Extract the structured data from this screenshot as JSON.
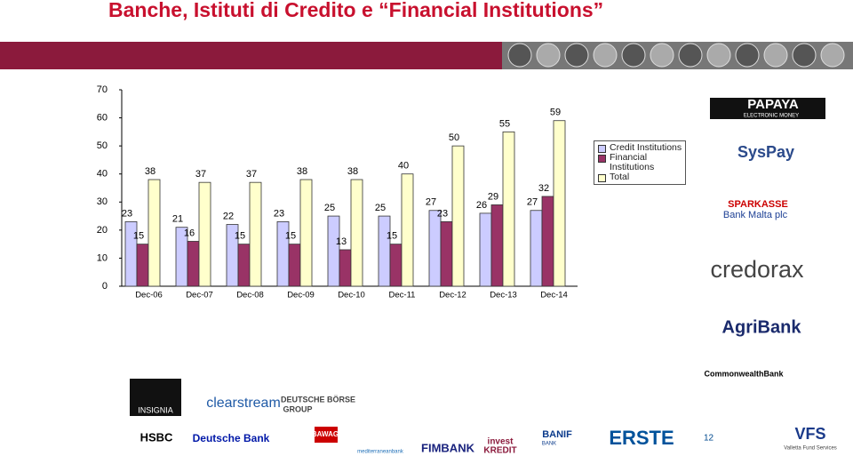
{
  "slide_title": "Banche, Istituti di Credito e “Financial Institutions”",
  "chart_data": {
    "type": "bar",
    "categories": [
      "Dec-06",
      "Dec-07",
      "Dec-08",
      "Dec-09",
      "Dec-10",
      "Dec-11",
      "Dec-12",
      "Dec-13",
      "Dec-14"
    ],
    "series": [
      {
        "name": "Credit Institutions",
        "color": "#ccccff",
        "values": [
          23,
          21,
          22,
          23,
          25,
          25,
          27,
          26,
          27
        ]
      },
      {
        "name": "Financial Institutions",
        "color": "#993366",
        "values": [
          15,
          16,
          15,
          15,
          13,
          15,
          23,
          29,
          32
        ]
      },
      {
        "name": "Total",
        "color": "#ffffcc",
        "values": [
          38,
          37,
          37,
          38,
          38,
          40,
          50,
          55,
          59
        ]
      }
    ],
    "ylim": [
      0,
      70
    ],
    "yticks": [
      0,
      10,
      20,
      30,
      40,
      50,
      60,
      70
    ],
    "legend": "right"
  },
  "logos": [
    "PAPAYA",
    "ELECTRONIC MONEY",
    "SysPay",
    "SPARKASSE",
    "Bank Malta plc",
    "credorax",
    "AgriBank",
    "CommonwealthBank",
    "INSIGNIA",
    "clearstream",
    "DEUTSCHE BÖRSE",
    "GROUP",
    "HSBC",
    "Deutsche Bank",
    "BAWAG",
    "mediterraneanbank",
    "FIMBANK",
    "invest",
    "KREDIT",
    "BANIF",
    "BANK",
    "ERSTE",
    "VFS",
    "Valletta Fund Services"
  ],
  "page_number": "12"
}
